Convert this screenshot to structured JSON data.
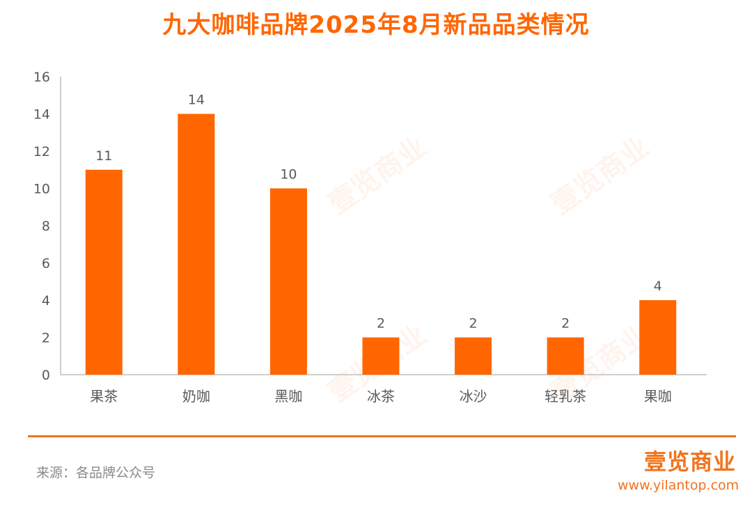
{
  "chart_data": {
    "type": "bar",
    "title": "九大咖啡品牌2025年8月新品品类情况",
    "categories": [
      "果茶",
      "奶咖",
      "黑咖",
      "冰茶",
      "冰沙",
      "轻乳茶",
      "果咖"
    ],
    "values": [
      11,
      14,
      10,
      2,
      2,
      2,
      4
    ],
    "ylim": [
      0,
      16
    ],
    "yticks": [
      0,
      2,
      4,
      6,
      8,
      10,
      12,
      14,
      16
    ],
    "xlabel": "",
    "ylabel": "",
    "grid": false,
    "data_labels": true,
    "bar_color": "#FF6600"
  },
  "footer": {
    "source": "来源：各品牌公众号",
    "logo": "壹览商业",
    "url": "www.yilantop.com"
  },
  "watermark": "壹览商业"
}
